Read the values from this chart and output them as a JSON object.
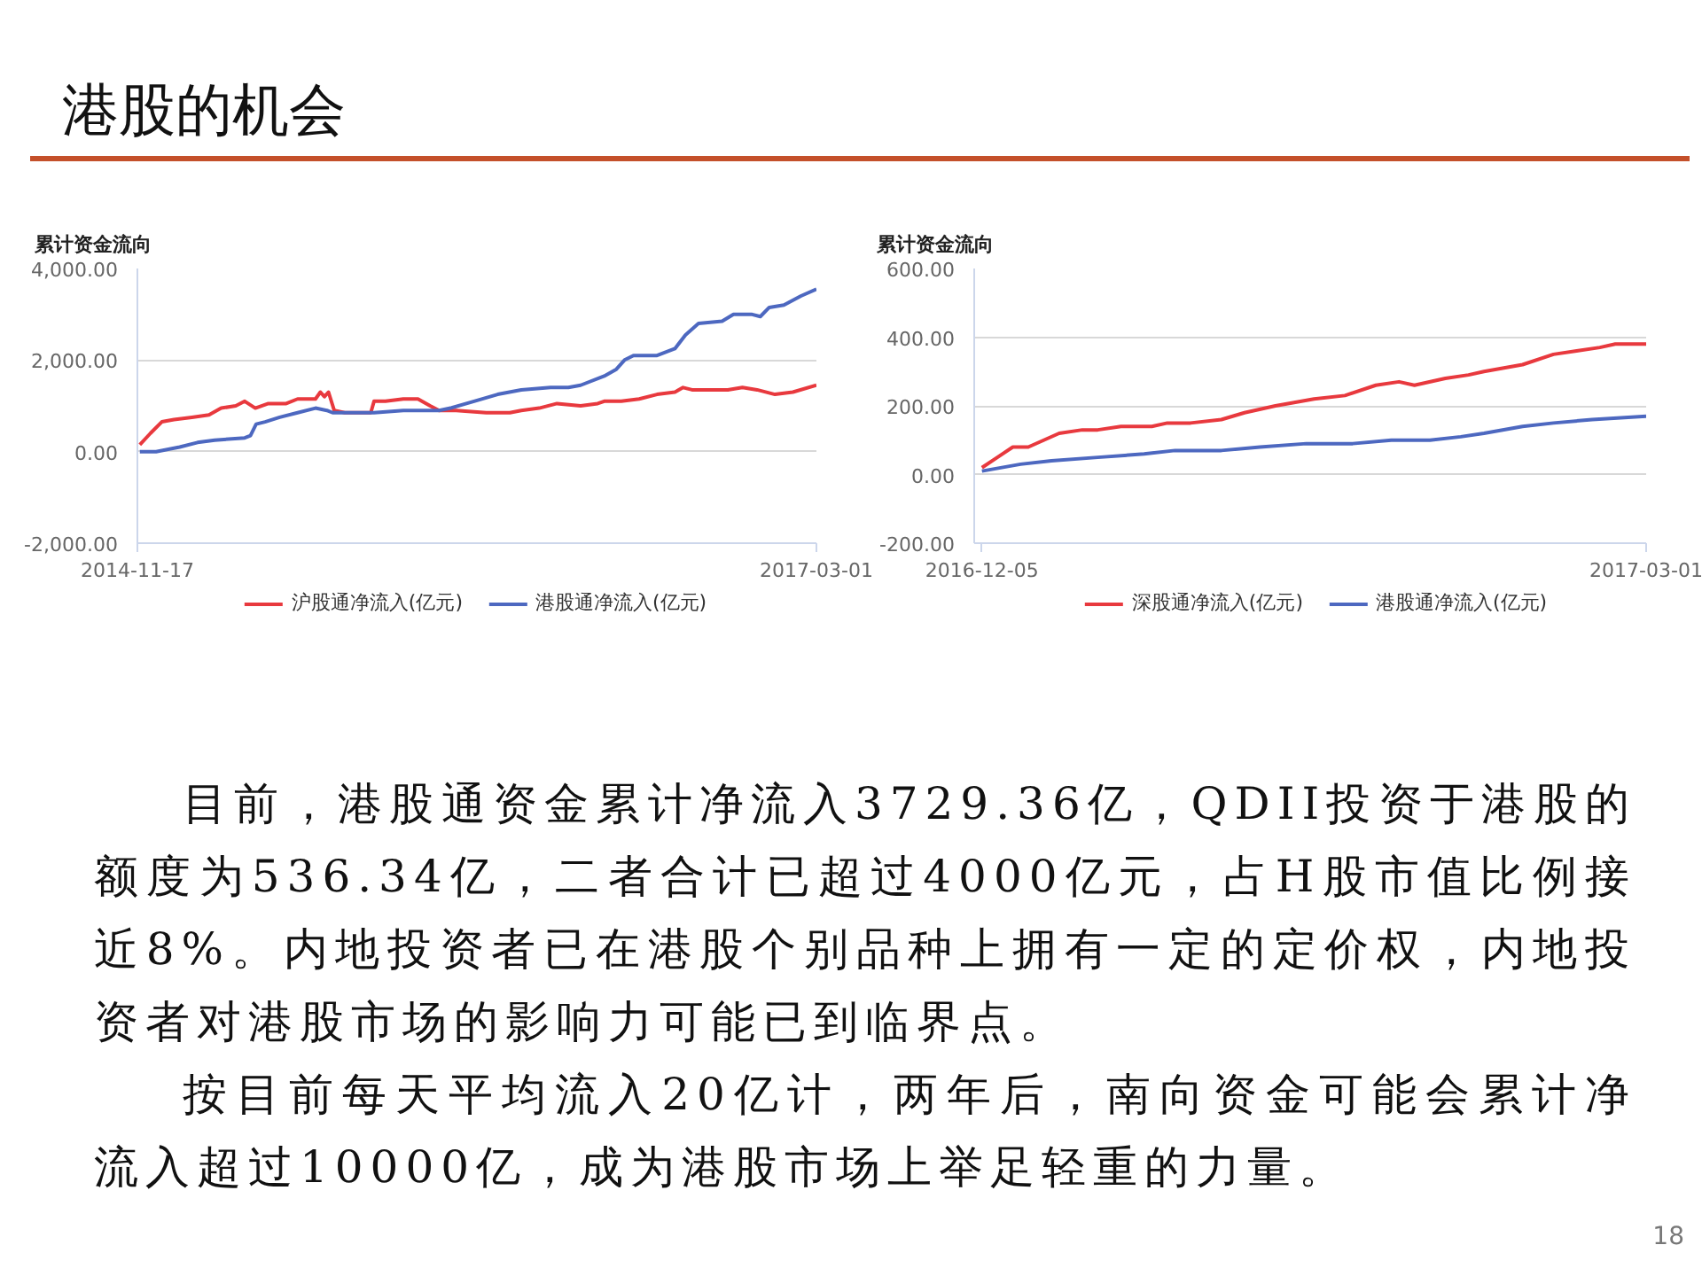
{
  "chart_data": [
    {
      "type": "line",
      "title": "累计资金流向",
      "annotations": [
        "港股的机会",
        "目前，港股通资金累计净流入3729.36亿，QDII投资于港股的额度为536.34亿，二者合计已超过4000亿元，占H股市值比例接近8%。内地投资者已在港股个别品种上拥有一定的定价权，内地投资者对港股市场的影响力可能已到临界点。",
        "按目前每天平均流入20亿计，两年后，南向资金可能会累计净流入超过10000亿，成为港股市场上举足轻重的力量。"
      ],
      "xlim": [
        "2014-11-17",
        "2017-03-01"
      ],
      "xticks": [
        "2014-11-17",
        "2017-03-01"
      ],
      "ylim": [
        -2000,
        4000
      ],
      "yticks": [
        {
          "value": -2000,
          "label": "-2,000.00"
        },
        {
          "value": 0,
          "label": "0.00"
        },
        {
          "value": 2000,
          "label": "2,000.00"
        },
        {
          "value": 4000,
          "label": "4,000.00"
        }
      ],
      "grid": "y",
      "legend": "bottom",
      "series": [
        {
          "name": "沪股通净流入(亿元)",
          "color": "#e8393e",
          "x": [
            "2014-11-20",
            "2014-12-03",
            "2014-12-17",
            "2015-01-01",
            "2015-01-23",
            "2015-02-13",
            "2015-02-28",
            "2015-03-18",
            "2015-03-29",
            "2015-04-11",
            "2015-04-27",
            "2015-05-19",
            "2015-06-02",
            "2015-06-24",
            "2015-06-30",
            "2015-07-05",
            "2015-07-10",
            "2015-07-17",
            "2015-07-30",
            "2015-08-31",
            "2015-09-04",
            "2015-09-18",
            "2015-10-10",
            "2015-10-28",
            "2015-11-12",
            "2015-11-23",
            "2015-12-14",
            "2016-01-20",
            "2016-02-18",
            "2016-03-03",
            "2016-03-25",
            "2016-04-16",
            "2016-05-15",
            "2016-06-05",
            "2016-06-13",
            "2016-07-04",
            "2016-07-26",
            "2016-08-17",
            "2016-09-08",
            "2016-09-18",
            "2016-09-29",
            "2016-10-28",
            "2016-11-12",
            "2016-11-30",
            "2016-12-18",
            "2017-01-09",
            "2017-01-31",
            "2017-03-01"
          ],
          "values": [
            150,
            400,
            650,
            700,
            750,
            800,
            950,
            1000,
            1100,
            950,
            1050,
            1050,
            1150,
            1150,
            1300,
            1200,
            1300,
            900,
            850,
            850,
            1100,
            1100,
            1150,
            1150,
            1000,
            900,
            900,
            850,
            850,
            900,
            950,
            1050,
            1000,
            1050,
            1100,
            1100,
            1150,
            1250,
            1300,
            1400,
            1350,
            1350,
            1350,
            1400,
            1350,
            1250,
            1300,
            1450
          ]
        },
        {
          "name": "港股通净流入(亿元)",
          "color": "#4d68c0",
          "x": [
            "2014-11-20",
            "2014-12-10",
            "2015-01-08",
            "2015-01-30",
            "2015-02-20",
            "2015-03-29",
            "2015-04-05",
            "2015-04-12",
            "2015-04-23",
            "2015-05-11",
            "2015-06-02",
            "2015-06-24",
            "2015-07-08",
            "2015-07-15",
            "2015-09-04",
            "2015-10-10",
            "2015-11-23",
            "2015-12-07",
            "2016-01-05",
            "2016-02-03",
            "2016-03-03",
            "2016-04-08",
            "2016-04-30",
            "2016-05-15",
            "2016-06-13",
            "2016-06-28",
            "2016-07-08",
            "2016-07-19",
            "2016-08-17",
            "2016-09-08",
            "2016-09-21",
            "2016-10-07",
            "2016-11-05",
            "2016-11-19",
            "2016-12-11",
            "2016-12-22",
            "2017-01-02",
            "2017-01-20",
            "2017-02-10",
            "2017-03-01"
          ],
          "values": [
            0,
            0,
            100,
            200,
            250,
            300,
            350,
            600,
            650,
            750,
            850,
            950,
            900,
            850,
            850,
            900,
            900,
            950,
            1100,
            1250,
            1350,
            1400,
            1400,
            1450,
            1650,
            1800,
            2000,
            2100,
            2100,
            2250,
            2550,
            2800,
            2850,
            3000,
            3000,
            2950,
            3150,
            3200,
            3400,
            3550
          ]
        }
      ]
    },
    {
      "type": "line",
      "title": "累计资金流向",
      "annotations": [
        "18"
      ],
      "xlim": [
        "2016-12-04",
        "2017-03-01"
      ],
      "xticks": [
        "2016-12-05",
        "2017-03-01"
      ],
      "ylim": [
        -200,
        600
      ],
      "yticks": [
        {
          "value": -200,
          "label": "-200.00"
        },
        {
          "value": 0,
          "label": "0.00"
        },
        {
          "value": 200,
          "label": "200.00"
        },
        {
          "value": 400,
          "label": "400.00"
        },
        {
          "value": 600,
          "label": "600.00"
        }
      ],
      "grid": "y",
      "legend": "bottom",
      "series": [
        {
          "name": "深股通净流入(亿元)",
          "color": "#e8393e",
          "x": [
            "2016-12-05",
            "2016-12-07",
            "2016-12-09",
            "2016-12-11",
            "2016-12-13",
            "2016-12-15",
            "2016-12-18",
            "2016-12-20",
            "2016-12-23",
            "2016-12-27",
            "2016-12-29",
            "2017-01-01",
            "2017-01-05",
            "2017-01-08",
            "2017-01-12",
            "2017-01-17",
            "2017-01-21",
            "2017-01-25",
            "2017-01-28",
            "2017-01-30",
            "2017-02-03",
            "2017-02-06",
            "2017-02-08",
            "2017-02-13",
            "2017-02-17",
            "2017-02-20",
            "2017-02-23",
            "2017-02-25",
            "2017-03-01"
          ],
          "values": [
            20,
            50,
            80,
            80,
            100,
            120,
            130,
            130,
            140,
            140,
            150,
            150,
            160,
            180,
            200,
            220,
            230,
            260,
            270,
            260,
            280,
            290,
            300,
            320,
            350,
            360,
            370,
            380,
            380
          ]
        },
        {
          "name": "港股通净流入(亿元)",
          "color": "#4d68c0",
          "x": [
            "2016-12-05",
            "2016-12-10",
            "2016-12-14",
            "2016-12-20",
            "2016-12-26",
            "2016-12-30",
            "2017-01-05",
            "2017-01-10",
            "2017-01-16",
            "2017-01-22",
            "2017-01-27",
            "2017-02-01",
            "2017-02-05",
            "2017-02-08",
            "2017-02-13",
            "2017-02-17",
            "2017-02-22",
            "2017-03-01"
          ],
          "values": [
            10,
            30,
            40,
            50,
            60,
            70,
            70,
            80,
            90,
            90,
            100,
            100,
            110,
            120,
            140,
            150,
            160,
            170
          ]
        }
      ]
    }
  ]
}
